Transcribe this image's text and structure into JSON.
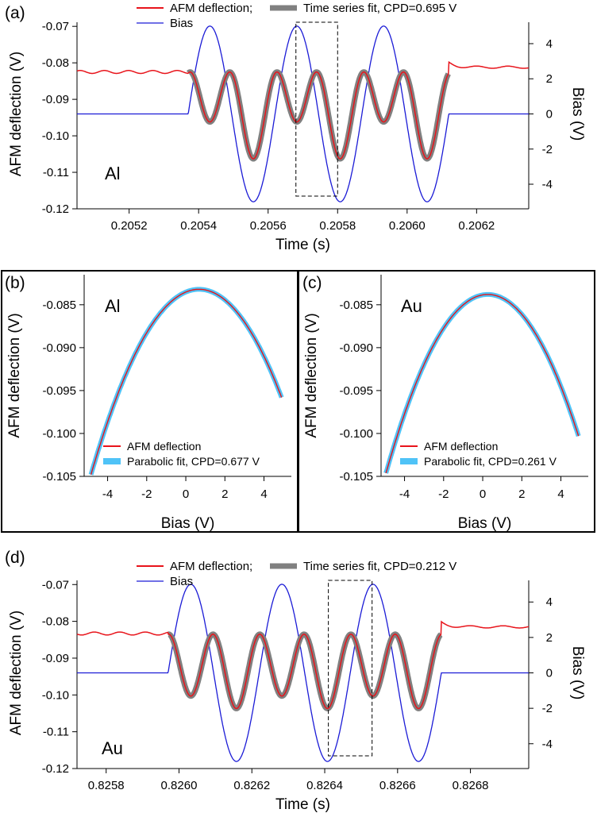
{
  "chart_data": [
    {
      "id": "a",
      "type": "line",
      "panel_label": "(a)",
      "material": "Al",
      "xlabel": "Time (s)",
      "ylabel": "AFM deflection (V)",
      "y2label": "Bias (V)",
      "xlim": [
        0.20505,
        0.20635
      ],
      "ylim": [
        -0.12,
        -0.068
      ],
      "y2lim": [
        -5.4,
        5.4
      ],
      "xticks": [
        0.2052,
        0.2054,
        0.2056,
        0.2058,
        0.206,
        0.2062
      ],
      "xtick_labels": [
        "0.2052",
        "0.2054",
        "0.2056",
        "0.2058",
        "0.2060",
        "0.2062"
      ],
      "yticks": [
        -0.12,
        -0.11,
        -0.1,
        -0.09,
        -0.08,
        -0.07
      ],
      "ytick_labels": [
        "-0.12",
        "-0.11",
        "-0.10",
        "-0.09",
        "-0.08",
        "-0.07"
      ],
      "y2ticks": [
        -4,
        -2,
        0,
        2,
        4
      ],
      "y2tick_labels": [
        "-4",
        "-2",
        "0",
        "2",
        "4"
      ],
      "legend": [
        {
          "label": "AFM deflection;",
          "color": "#e8141b"
        },
        {
          "label": "Time series fit,  CPD=0.695 V",
          "color": "#808080"
        },
        {
          "label": "Bias",
          "color": "#1b1bd6"
        }
      ],
      "signal": {
        "t_start": 0.20537,
        "t_end": 0.20612,
        "period": 0.00025,
        "bias_amplitude_V": 5,
        "cpd_V": 0.695,
        "deflection_max": -0.0825,
        "deflection_min_pos": -0.0962,
        "deflection_min_neg": -0.1063,
        "baseline_before": -0.0825,
        "baseline_after": -0.0812
      },
      "highlight_box_x": [
        0.20568,
        0.2058
      ]
    },
    {
      "id": "b",
      "type": "line",
      "panel_label": "(b)",
      "material": "Al",
      "xlabel": "Bias (V)",
      "ylabel": "AFM deflection (V)",
      "xlim": [
        -5.2,
        5.4
      ],
      "ylim": [
        -0.105,
        -0.0815
      ],
      "xticks": [
        -4,
        -2,
        0,
        2,
        4
      ],
      "xtick_labels": [
        "-4",
        "-2",
        "0",
        "2",
        "4"
      ],
      "yticks": [
        -0.105,
        -0.1,
        -0.095,
        -0.09,
        -0.085
      ],
      "ytick_labels": [
        "-0.105",
        "-0.100",
        "-0.095",
        "-0.090",
        "-0.085"
      ],
      "legend": [
        {
          "label": "AFM deflection",
          "color": "#e8141b"
        },
        {
          "label": "Parabolic fit, CPD=0.677 V",
          "color": "#4fc3f7"
        }
      ],
      "parabola": {
        "vertex_x": 0.677,
        "vertex_y": -0.0832,
        "x_range": [
          -5,
          4.9
        ],
        "y_at_x5": -0.0958
      }
    },
    {
      "id": "c",
      "type": "line",
      "panel_label": "(c)",
      "material": "Au",
      "xlabel": "Bias (V)",
      "ylabel": "AFM deflection (V)",
      "xlim": [
        -5.2,
        5.4
      ],
      "ylim": [
        -0.105,
        -0.0815
      ],
      "xticks": [
        -4,
        -2,
        0,
        2,
        4
      ],
      "xtick_labels": [
        "-4",
        "-2",
        "0",
        "2",
        "4"
      ],
      "yticks": [
        -0.105,
        -0.1,
        -0.095,
        -0.09,
        -0.085
      ],
      "ytick_labels": [
        "-0.105",
        "-0.100",
        "-0.095",
        "-0.090",
        "-0.085"
      ],
      "legend": [
        {
          "label": "AFM deflection",
          "color": "#e8141b"
        },
        {
          "label": "Parabolic fit, CPD=0.261 V",
          "color": "#4fc3f7"
        }
      ],
      "parabola": {
        "vertex_x": 0.261,
        "vertex_y": -0.0838,
        "x_range": [
          -5,
          4.9
        ],
        "y_at_x5": -0.1003
      }
    },
    {
      "id": "d",
      "type": "line",
      "panel_label": "(d)",
      "material": "Au",
      "xlabel": "Time (s)",
      "ylabel": "AFM deflection (V)",
      "y2label": "Bias (V)",
      "xlim": [
        0.82572,
        0.82696
      ],
      "ylim": [
        -0.12,
        -0.068
      ],
      "y2lim": [
        -5.4,
        5.4
      ],
      "xticks": [
        0.8258,
        0.826,
        0.8262,
        0.8264,
        0.8266,
        0.8268
      ],
      "xtick_labels": [
        "0.8258",
        "0.8260",
        "0.8262",
        "0.8264",
        "0.8266",
        "0.8268"
      ],
      "yticks": [
        -0.12,
        -0.11,
        -0.1,
        -0.09,
        -0.08,
        -0.07
      ],
      "ytick_labels": [
        "-0.12",
        "-0.11",
        "-0.10",
        "-0.09",
        "-0.08",
        "-0.07"
      ],
      "y2ticks": [
        -4,
        -2,
        0,
        2,
        4
      ],
      "y2tick_labels": [
        "-4",
        "-2",
        "0",
        "2",
        "4"
      ],
      "legend": [
        {
          "label": "AFM deflection;",
          "color": "#e8141b"
        },
        {
          "label": "Time series fit, CPD=0.212 V",
          "color": "#808080"
        },
        {
          "label": "Bias",
          "color": "#1b1bd6"
        }
      ],
      "signal": {
        "t_start": 0.82597,
        "t_end": 0.82672,
        "period": 0.00025,
        "bias_amplitude_V": 5,
        "cpd_V": 0.212,
        "deflection_max": -0.0835,
        "deflection_min_pos": -0.1003,
        "deflection_min_neg": -0.1037,
        "baseline_before": -0.0833,
        "baseline_after": -0.0815
      },
      "highlight_box_x": [
        0.82641,
        0.82653
      ]
    }
  ]
}
